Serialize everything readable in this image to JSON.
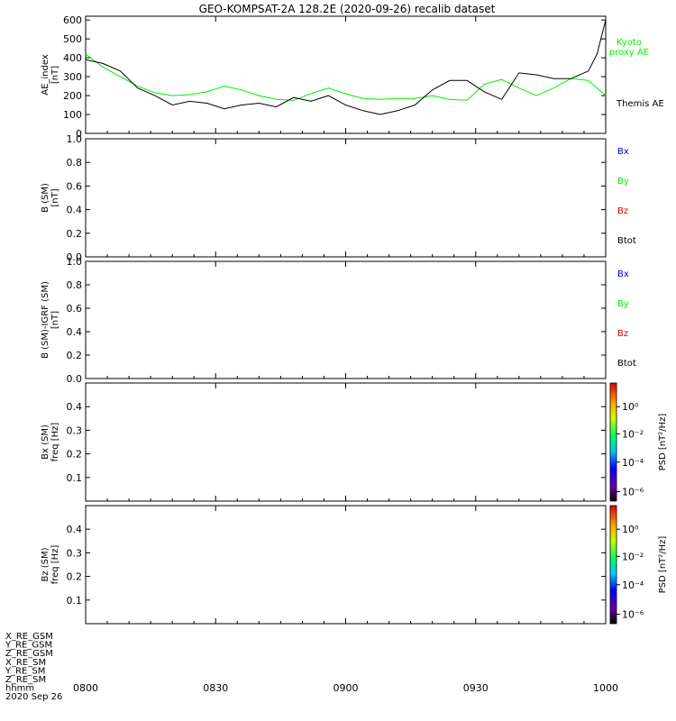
{
  "title": "GEO-KOMPSAT-2A 128.2E (2020-09-26) recalib dataset",
  "colors": {
    "black": "#000000",
    "green": "#00ee00",
    "blue": "#0000cc",
    "red": "#dd0000"
  },
  "x_axis": {
    "tick_labels": [
      "0800",
      "0830",
      "0900",
      "0930",
      "1000"
    ],
    "row_labels": [
      "X_RE_GSM",
      "Y_RE_GSM",
      "Z_RE_GSM",
      "X_RE_SM",
      "Y_RE_SM",
      "Z_RE_SM",
      "hhmm",
      "2020 Sep 26"
    ]
  },
  "chart_data": [
    {
      "type": "line",
      "ylabel": "AE_index [nT]",
      "ylabel_lines": [
        "AE_index",
        "[nT]"
      ],
      "ylim": [
        0,
        620
      ],
      "yticks": [
        "0",
        "100",
        "200",
        "300",
        "400",
        "500",
        "600"
      ],
      "x_unit": "minutes after 08:00 UT",
      "series": [
        {
          "name": "Kyoto proxy AE",
          "legend_lines": [
            "Kyoto",
            "proxy AE"
          ],
          "color": "#00ee00",
          "x": [
            0,
            4,
            8,
            12,
            16,
            20,
            24,
            28,
            32,
            36,
            40,
            44,
            48,
            52,
            56,
            60,
            64,
            68,
            72,
            76,
            80,
            84,
            88,
            92,
            96,
            100,
            104,
            108,
            112,
            116,
            120
          ],
          "y": [
            420,
            350,
            300,
            250,
            215,
            200,
            205,
            220,
            250,
            230,
            200,
            180,
            175,
            210,
            240,
            210,
            185,
            180,
            185,
            185,
            200,
            180,
            175,
            260,
            285,
            240,
            200,
            240,
            290,
            280,
            200
          ]
        },
        {
          "name": "Themis AE",
          "legend_lines": [
            "Themis AE"
          ],
          "color": "#000000",
          "x": [
            0,
            4,
            8,
            12,
            16,
            20,
            24,
            28,
            32,
            36,
            40,
            44,
            48,
            52,
            56,
            60,
            64,
            68,
            72,
            76,
            80,
            84,
            88,
            92,
            96,
            100,
            104,
            108,
            112,
            116,
            118,
            120
          ],
          "y": [
            390,
            370,
            330,
            240,
            200,
            150,
            170,
            160,
            130,
            150,
            160,
            140,
            190,
            170,
            200,
            150,
            120,
            100,
            120,
            150,
            230,
            280,
            280,
            220,
            180,
            320,
            310,
            290,
            290,
            330,
            420,
            600
          ]
        }
      ]
    },
    {
      "type": "line",
      "ylabel": "B (SM) [nT]",
      "ylabel_lines": [
        "B (SM)",
        "[nT]"
      ],
      "ylim": [
        0,
        1
      ],
      "yticks": [
        "0.0",
        "0.2",
        "0.4",
        "0.6",
        "0.8",
        "1.0"
      ],
      "legend": [
        {
          "name": "Bx",
          "color": "#0000cc"
        },
        {
          "name": "By",
          "color": "#00ee00"
        },
        {
          "name": "Bz",
          "color": "#dd0000"
        },
        {
          "name": "Btot",
          "color": "#000000"
        }
      ],
      "series": []
    },
    {
      "type": "line",
      "ylabel": "B (SM)-IGRF (SM) [nT]",
      "ylabel_lines": [
        "B (SM)-IGRF (SM)",
        "[nT]"
      ],
      "ylim": [
        0,
        1
      ],
      "yticks": [
        "0.0",
        "0.2",
        "0.4",
        "0.6",
        "0.8",
        "1.0"
      ],
      "legend": [
        {
          "name": "Bx",
          "color": "#0000cc"
        },
        {
          "name": "By",
          "color": "#00ee00"
        },
        {
          "name": "Bz",
          "color": "#dd0000"
        },
        {
          "name": "Btot",
          "color": "#000000"
        }
      ],
      "series": []
    },
    {
      "type": "heatmap",
      "ylabel": "Bx (SM) freq [Hz]",
      "ylabel_lines": [
        "Bx (SM)",
        "freq [Hz]"
      ],
      "ylim": [
        0,
        0.5
      ],
      "yticks": [
        "0.1",
        "0.2",
        "0.3",
        "0.4"
      ],
      "colorbar": {
        "label": "PSD [nT²/Hz]",
        "scale": "log",
        "ticks": [
          "10⁰",
          "10⁻²",
          "10⁻⁴",
          "10⁻⁶"
        ]
      },
      "values": []
    },
    {
      "type": "heatmap",
      "ylabel": "Bz (SM) freq [Hz]",
      "ylabel_lines": [
        "Bz (SM)",
        "freq [Hz]"
      ],
      "ylim": [
        0,
        0.5
      ],
      "yticks": [
        "0.1",
        "0.2",
        "0.3",
        "0.4"
      ],
      "colorbar": {
        "label": "PSD [nT²/Hz]",
        "scale": "log",
        "ticks": [
          "10⁰",
          "10⁻²",
          "10⁻⁴",
          "10⁻⁶"
        ]
      },
      "values": []
    }
  ]
}
